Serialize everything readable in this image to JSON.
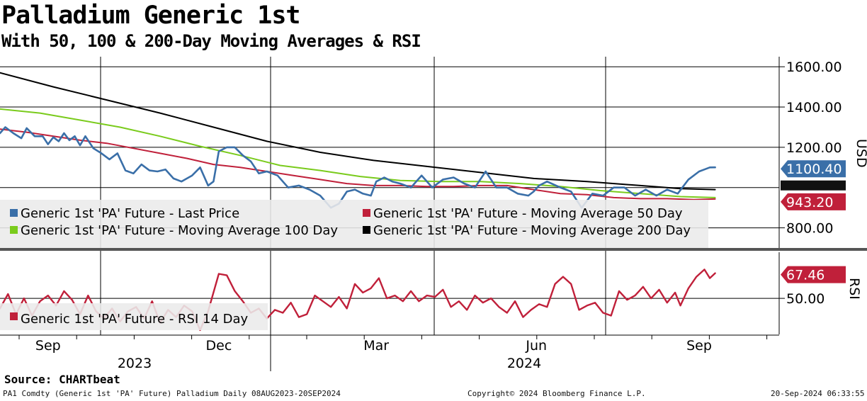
{
  "header": {
    "title": "Palladium Generic 1st",
    "subtitle": "With 50, 100 & 200-Day Moving Averages & RSI"
  },
  "footer": {
    "source": "Source: CHARTbeat",
    "ticker_info": "PA1 Comdty (Generic 1st 'PA' Future) Palladium  Daily 08AUG2023-20SEP2024",
    "copyright": "Copyright© 2024 Bloomberg Finance L.P.",
    "timestamp": "20-Sep-2024 06:33:55"
  },
  "colors": {
    "price": "#3a6fa8",
    "ma50": "#c0203a",
    "ma100": "#7acb1c",
    "ma200": "#000000",
    "rsi": "#c0203a"
  },
  "chart_data": [
    {
      "type": "line",
      "panel": "price",
      "ylabel": "USD",
      "ylim": [
        700,
        1650
      ],
      "ytick_labels": [
        "1600.00",
        "1400.00",
        "1200.00",
        "800.00"
      ],
      "ytick_values": [
        1600,
        1400,
        1200,
        800
      ],
      "x_month_labels": [
        "Sep",
        "Dec",
        "Mar",
        "Jun",
        "Sep"
      ],
      "x_month_index": [
        18,
        82,
        141,
        201,
        262
      ],
      "x_year_labels": [
        "2023",
        "2024"
      ],
      "x_count": 292,
      "last_values": {
        "price": "1100.40",
        "ma": "943.20"
      },
      "legend": [
        "Generic 1st 'PA' Future - Last Price",
        "Generic 1st 'PA' Future - Moving Average 50 Day",
        "Generic 1st 'PA' Future - Moving Average 100 Day",
        "Generic 1st 'PA' Future - Moving Average 200 Day"
      ],
      "series": [
        {
          "name": "Generic 1st 'PA' Future - Last Price",
          "key": "price",
          "x": [
            0,
            2,
            5,
            8,
            10,
            13,
            16,
            18,
            20,
            22,
            24,
            26,
            28,
            30,
            32,
            35,
            38,
            41,
            44,
            47,
            50,
            53,
            56,
            59,
            62,
            65,
            68,
            72,
            75,
            78,
            80,
            82,
            85,
            88,
            91,
            94,
            97,
            100,
            104,
            108,
            112,
            116,
            120,
            124,
            127,
            130,
            133,
            136,
            139,
            141,
            144,
            147,
            150,
            154,
            158,
            162,
            166,
            170,
            174,
            178,
            182,
            186,
            190,
            194,
            198,
            200,
            202,
            205,
            210,
            214,
            218,
            222,
            226,
            230,
            234,
            238,
            242,
            246,
            250,
            254,
            258,
            262,
            264,
            266,
            268
          ],
          "values": [
            1270,
            1300,
            1270,
            1245,
            1295,
            1255,
            1255,
            1215,
            1250,
            1230,
            1270,
            1235,
            1255,
            1210,
            1255,
            1195,
            1170,
            1140,
            1170,
            1085,
            1070,
            1115,
            1085,
            1080,
            1090,
            1045,
            1030,
            1060,
            1100,
            1010,
            1030,
            1180,
            1200,
            1200,
            1160,
            1130,
            1070,
            1080,
            1060,
            1000,
            1010,
            990,
            960,
            900,
            920,
            980,
            990,
            970,
            960,
            1030,
            1050,
            1030,
            1020,
            1000,
            1060,
            1000,
            1040,
            1050,
            1020,
            1000,
            1080,
            1000,
            1000,
            970,
            960,
            980,
            1010,
            1030,
            1000,
            980,
            900,
            970,
            960,
            1000,
            1000,
            960,
            990,
            960,
            990,
            970,
            1040,
            1080,
            1090,
            1100,
            1100.4
          ]
        },
        {
          "name": "Generic 1st 'PA' Future - Moving Average 50 Day",
          "key": "ma50",
          "x": [
            0,
            10,
            20,
            30,
            40,
            50,
            60,
            70,
            80,
            90,
            100,
            110,
            120,
            130,
            140,
            150,
            160,
            170,
            180,
            190,
            200,
            210,
            220,
            230,
            240,
            250,
            260,
            268
          ],
          "values": [
            1290,
            1275,
            1255,
            1235,
            1220,
            1195,
            1170,
            1145,
            1115,
            1100,
            1080,
            1060,
            1040,
            1020,
            1010,
            1010,
            1005,
            1005,
            1010,
            1010,
            990,
            970,
            965,
            950,
            945,
            945,
            940,
            943.2
          ]
        },
        {
          "name": "Generic 1st 'PA' Future - Moving Average 100 Day",
          "key": "ma100",
          "x": [
            0,
            15,
            30,
            45,
            60,
            75,
            90,
            105,
            120,
            135,
            150,
            165,
            180,
            195,
            210,
            225,
            240,
            255,
            268
          ],
          "values": [
            1390,
            1370,
            1335,
            1300,
            1255,
            1205,
            1160,
            1110,
            1085,
            1055,
            1035,
            1030,
            1030,
            1020,
            1005,
            985,
            970,
            955,
            950
          ]
        },
        {
          "name": "Generic 1st 'PA' Future - Moving Average 200 Day",
          "key": "ma200",
          "x": [
            0,
            20,
            40,
            60,
            80,
            100,
            120,
            140,
            160,
            180,
            200,
            220,
            240,
            255,
            268
          ],
          "values": [
            1570,
            1500,
            1435,
            1370,
            1300,
            1230,
            1175,
            1135,
            1105,
            1075,
            1045,
            1030,
            1010,
            995,
            990
          ]
        }
      ]
    },
    {
      "type": "line",
      "panel": "rsi",
      "ylabel": "RSI",
      "ylim": [
        25,
        82
      ],
      "ytick_labels": [
        "50.00"
      ],
      "ytick_values": [
        50
      ],
      "last_value_label": "67.46",
      "legend": [
        "Generic 1st 'PA' Future - RSI 14 Day"
      ],
      "series": [
        {
          "name": "Generic 1st 'PA' Future - RSI 14 Day",
          "key": "rsi",
          "x": [
            0,
            3,
            6,
            9,
            12,
            15,
            18,
            21,
            24,
            27,
            30,
            33,
            36,
            39,
            42,
            45,
            48,
            51,
            54,
            57,
            60,
            63,
            66,
            69,
            72,
            75,
            78,
            82,
            85,
            88,
            91,
            94,
            97,
            100,
            103,
            106,
            109,
            112,
            115,
            118,
            121,
            124,
            127,
            130,
            133,
            136,
            139,
            142,
            145,
            148,
            151,
            154,
            157,
            160,
            163,
            166,
            169,
            172,
            175,
            178,
            181,
            184,
            187,
            190,
            193,
            196,
            199,
            202,
            205,
            208,
            211,
            214,
            217,
            220,
            223,
            226,
            229,
            232,
            235,
            238,
            241,
            244,
            247,
            250,
            253,
            255,
            258,
            261,
            264,
            266,
            268
          ],
          "values": [
            43,
            53,
            39,
            50,
            38,
            48,
            52,
            45,
            55,
            49,
            39,
            52,
            41,
            36,
            43,
            34,
            41,
            44,
            36,
            48,
            33,
            42,
            37,
            45,
            41,
            28,
            41,
            67,
            66,
            55,
            48,
            40,
            43,
            36,
            42,
            40,
            47,
            37,
            39,
            52,
            48,
            44,
            51,
            43,
            60,
            54,
            57,
            64,
            50,
            52,
            48,
            55,
            48,
            52,
            51,
            56,
            44,
            48,
            42,
            52,
            47,
            50,
            44,
            40,
            48,
            37,
            42,
            46,
            44,
            60,
            65,
            60,
            42,
            45,
            47,
            40,
            38,
            55,
            49,
            52,
            58,
            50,
            56,
            47,
            54,
            45,
            57,
            65,
            70,
            64,
            67.46
          ]
        }
      ]
    }
  ]
}
